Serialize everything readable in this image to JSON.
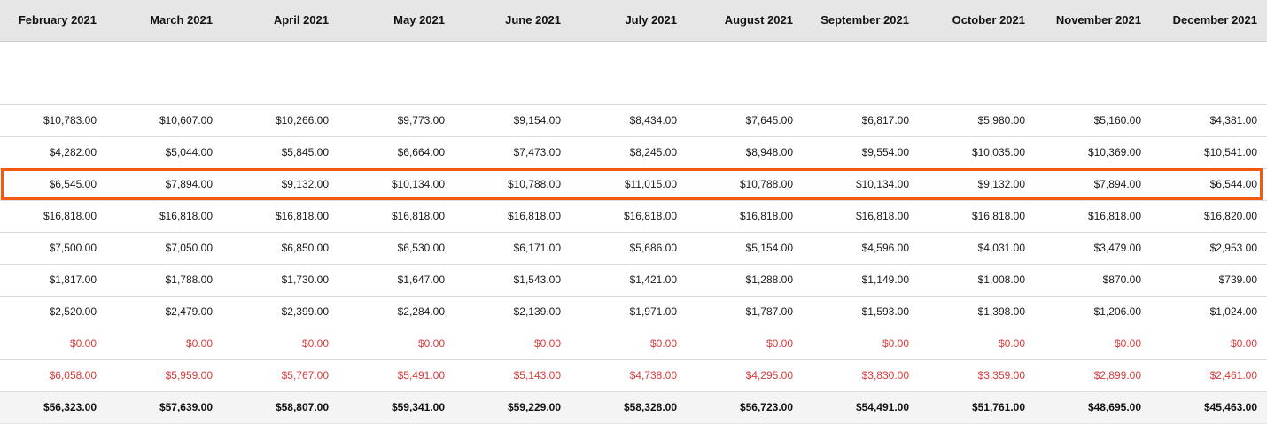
{
  "columns": [
    "February 2021",
    "March 2021",
    "April 2021",
    "May 2021",
    "June 2021",
    "July 2021",
    "August 2021",
    "September 2021",
    "October 2021",
    "November 2021",
    "December 2021"
  ],
  "rows": [
    {
      "style": "blank",
      "cells": [
        "",
        "",
        "",
        "",
        "",
        "",
        "",
        "",
        "",
        "",
        ""
      ]
    },
    {
      "style": "blank",
      "cells": [
        "",
        "",
        "",
        "",
        "",
        "",
        "",
        "",
        "",
        "",
        ""
      ]
    },
    {
      "style": "normal",
      "cells": [
        "$10,783.00",
        "$10,607.00",
        "$10,266.00",
        "$9,773.00",
        "$9,154.00",
        "$8,434.00",
        "$7,645.00",
        "$6,817.00",
        "$5,980.00",
        "$5,160.00",
        "$4,381.00"
      ]
    },
    {
      "style": "normal",
      "cells": [
        "$4,282.00",
        "$5,044.00",
        "$5,845.00",
        "$6,664.00",
        "$7,473.00",
        "$8,245.00",
        "$8,948.00",
        "$9,554.00",
        "$10,035.00",
        "$10,369.00",
        "$10,541.00"
      ]
    },
    {
      "style": "highlighted",
      "cells": [
        "$6,545.00",
        "$7,894.00",
        "$9,132.00",
        "$10,134.00",
        "$10,788.00",
        "$11,015.00",
        "$10,788.00",
        "$10,134.00",
        "$9,132.00",
        "$7,894.00",
        "$6,544.00"
      ]
    },
    {
      "style": "normal",
      "cells": [
        "$16,818.00",
        "$16,818.00",
        "$16,818.00",
        "$16,818.00",
        "$16,818.00",
        "$16,818.00",
        "$16,818.00",
        "$16,818.00",
        "$16,818.00",
        "$16,818.00",
        "$16,820.00"
      ]
    },
    {
      "style": "normal",
      "cells": [
        "$7,500.00",
        "$7,050.00",
        "$6,850.00",
        "$6,530.00",
        "$6,171.00",
        "$5,686.00",
        "$5,154.00",
        "$4,596.00",
        "$4,031.00",
        "$3,479.00",
        "$2,953.00"
      ]
    },
    {
      "style": "normal",
      "cells": [
        "$1,817.00",
        "$1,788.00",
        "$1,730.00",
        "$1,647.00",
        "$1,543.00",
        "$1,421.00",
        "$1,288.00",
        "$1,149.00",
        "$1,008.00",
        "$870.00",
        "$739.00"
      ]
    },
    {
      "style": "normal",
      "cells": [
        "$2,520.00",
        "$2,479.00",
        "$2,399.00",
        "$2,284.00",
        "$2,139.00",
        "$1,971.00",
        "$1,787.00",
        "$1,593.00",
        "$1,398.00",
        "$1,206.00",
        "$1,024.00"
      ]
    },
    {
      "style": "red",
      "cells": [
        "$0.00",
        "$0.00",
        "$0.00",
        "$0.00",
        "$0.00",
        "$0.00",
        "$0.00",
        "$0.00",
        "$0.00",
        "$0.00",
        "$0.00"
      ]
    },
    {
      "style": "red",
      "cells": [
        "$6,058.00",
        "$5,959.00",
        "$5,767.00",
        "$5,491.00",
        "$5,143.00",
        "$4,738.00",
        "$4,295.00",
        "$3,830.00",
        "$3,359.00",
        "$2,899.00",
        "$2,461.00"
      ]
    },
    {
      "style": "total",
      "cells": [
        "$56,323.00",
        "$57,639.00",
        "$58,807.00",
        "$59,341.00",
        "$59,229.00",
        "$58,328.00",
        "$56,723.00",
        "$54,491.00",
        "$51,761.00",
        "$48,695.00",
        "$45,463.00"
      ]
    }
  ],
  "colors": {
    "header_bg": "#e6e6e6",
    "negative_text": "#d73a3a",
    "highlight_border": "#f25a10",
    "total_bg": "#f4f4f4"
  }
}
